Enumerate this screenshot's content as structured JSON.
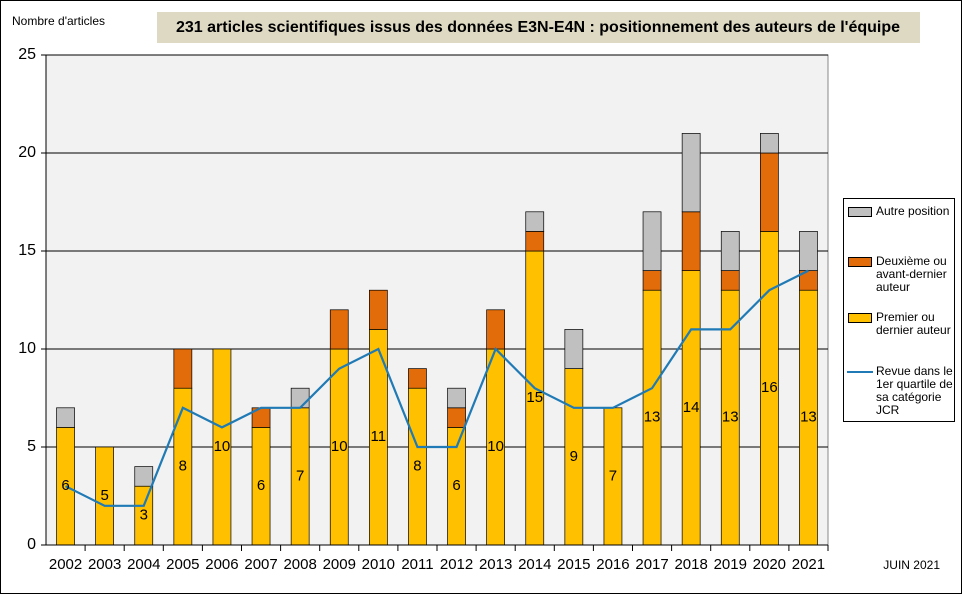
{
  "chart_data": {
    "type": "bar",
    "stacked": true,
    "title": "231 articles scientifiques issus des données E3N-E4N : positionnement des auteurs de l'équipe",
    "ylabel": "Nombre d'articles",
    "note": "JUIN 2021",
    "categories": [
      "2002",
      "2003",
      "2004",
      "2005",
      "2006",
      "2007",
      "2008",
      "2009",
      "2010",
      "2011",
      "2012",
      "2013",
      "2014",
      "2015",
      "2016",
      "2017",
      "2018",
      "2019",
      "2020",
      "2021"
    ],
    "series": [
      {
        "name": "Premier ou dernier auteur",
        "type": "bar",
        "color": "#ffc000",
        "values": [
          6,
          5,
          3,
          8,
          10,
          6,
          7,
          10,
          11,
          8,
          6,
          10,
          15,
          9,
          7,
          13,
          14,
          13,
          16,
          13
        ],
        "data_labels": true
      },
      {
        "name": "Deuxième ou avant-dernier auteur",
        "type": "bar",
        "color": "#e36c0a",
        "values": [
          0,
          0,
          0,
          2,
          0,
          1,
          0,
          2,
          2,
          1,
          1,
          2,
          1,
          0,
          0,
          1,
          3,
          1,
          4,
          1
        ]
      },
      {
        "name": "Autre position",
        "type": "bar",
        "color": "#c0c0c0",
        "values": [
          1,
          0,
          1,
          0,
          0,
          0,
          1,
          0,
          0,
          0,
          1,
          0,
          1,
          2,
          0,
          3,
          4,
          2,
          1,
          2
        ]
      },
      {
        "name": "Revue dans le 1er quartile de sa catégorie JCR",
        "type": "line",
        "color": "#1f7ab5",
        "values": [
          3,
          2,
          2,
          7,
          6,
          7,
          7,
          9,
          10,
          5,
          5,
          10,
          8,
          7,
          7,
          8,
          11,
          11,
          13,
          14
        ]
      }
    ],
    "ylim": [
      0,
      25
    ],
    "yticks": [
      0,
      5,
      10,
      15,
      20,
      25
    ],
    "grid": true
  }
}
